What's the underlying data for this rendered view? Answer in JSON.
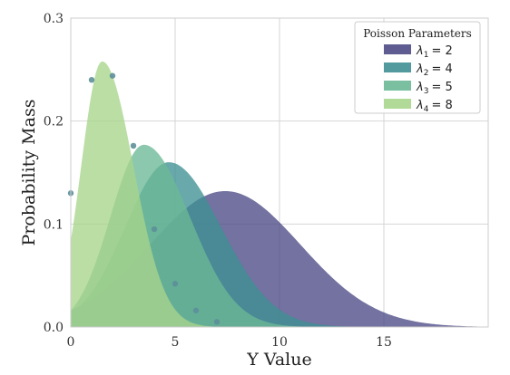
{
  "chart_data": {
    "type": "area",
    "xlabel": "Y Value",
    "ylabel": "Probability Mass",
    "xlim": [
      0,
      20
    ],
    "ylim": [
      0,
      0.3
    ],
    "x_ticks": [
      "0",
      "5",
      "10",
      "15"
    ],
    "y_ticks": [
      "0.0",
      "0.1",
      "0.2",
      "0.3"
    ],
    "grid": true,
    "legend": {
      "title": "Poisson Parameters",
      "placement": "top-right",
      "entries": [
        {
          "symbol": "λ",
          "sub": "1",
          "value": "= 2"
        },
        {
          "symbol": "λ",
          "sub": "2",
          "value": "= 4"
        },
        {
          "symbol": "λ",
          "sub": "3",
          "value": "= 5"
        },
        {
          "symbol": "λ",
          "sub": "4",
          "value": "= 8"
        }
      ]
    },
    "series": [
      {
        "name": "λ1 = 2",
        "color": "#4c4a85",
        "peak_x": 7.4,
        "peak_y": 0.132,
        "sigma_left": 3.6,
        "sigma_right": 3.6
      },
      {
        "name": "λ2 = 4",
        "color": "#3f8f93",
        "peak_x": 4.7,
        "peak_y": 0.16,
        "sigma_left": 2.1,
        "sigma_right": 2.5
      },
      {
        "name": "λ3 = 5",
        "color": "#6cb896",
        "peak_x": 3.5,
        "peak_y": 0.177,
        "sigma_left": 1.6,
        "sigma_right": 2.2
      },
      {
        "name": "λ4 = 8",
        "color": "#a8d58c",
        "peak_x": 1.5,
        "peak_y": 0.258,
        "sigma_left": 1.0,
        "sigma_right": 1.5
      }
    ],
    "points": [
      {
        "x": 0,
        "y": 0.13
      },
      {
        "x": 1,
        "y": 0.24
      },
      {
        "x": 2,
        "y": 0.244
      },
      {
        "x": 3,
        "y": 0.176
      },
      {
        "x": 4,
        "y": 0.095
      },
      {
        "x": 5,
        "y": 0.042
      },
      {
        "x": 6,
        "y": 0.016
      },
      {
        "x": 7,
        "y": 0.005
      }
    ],
    "point_color": "#5d8f99"
  }
}
